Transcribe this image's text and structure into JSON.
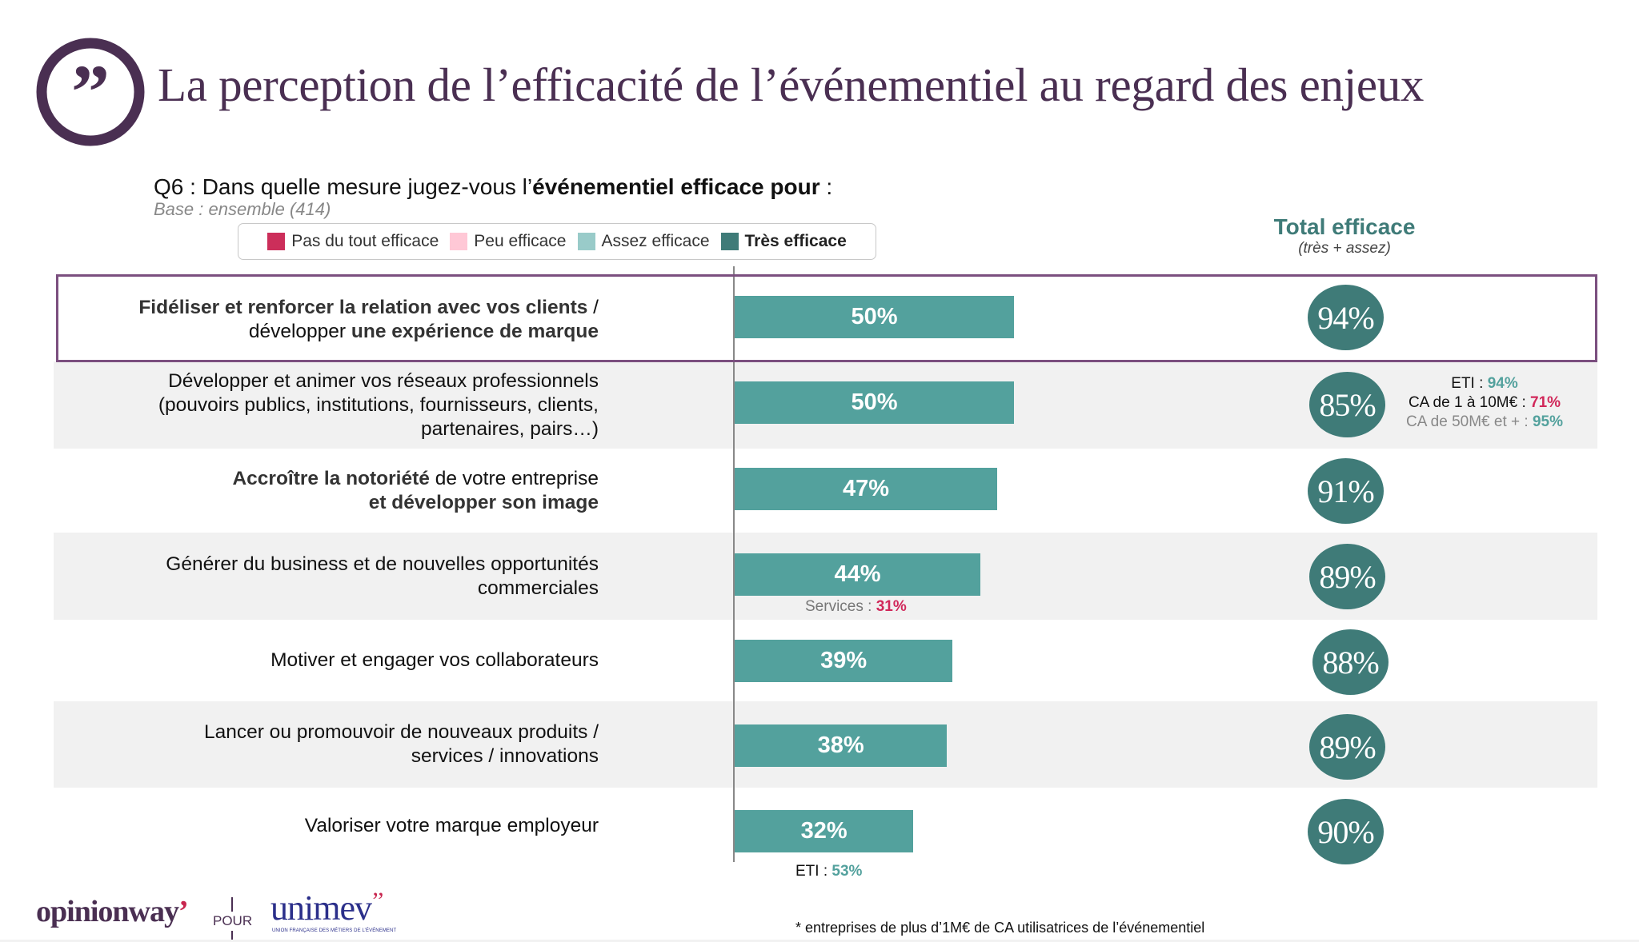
{
  "header": {
    "title": "La perception de l’efficacité de l’événementiel au regard des enjeux",
    "question_prefix": "Q6 :  Dans quelle mesure jugez-vous l’",
    "question_bold": "événementiel efficace pour",
    "question_suffix": " :",
    "base": "Base : ensemble (414)"
  },
  "legend": [
    {
      "label": "Pas du tout efficace",
      "color": "#CC2E5A",
      "bold": false
    },
    {
      "label": "Peu efficace",
      "color": "#FFC8D6",
      "bold": false
    },
    {
      "label": "Assez efficace",
      "color": "#99CBC9",
      "bold": false
    },
    {
      "label": "Très efficace",
      "color": "#3F7B78",
      "bold": true
    }
  ],
  "total_header": {
    "title": "Total efficace",
    "subtitle": "(très + assez)"
  },
  "colors": {
    "bar": "#53A19D",
    "circle": "#3F7B78",
    "highlight_border": "#7B4F7F",
    "title": "#4A2F52",
    "positive_note": "#53A19D",
    "negative_note": "#D1285A"
  },
  "chart_data": {
    "type": "bar",
    "orientation": "horizontal",
    "title": "La perception de l’efficacité de l’événementiel au regard des enjeux",
    "xlabel": "",
    "ylabel": "",
    "xlim": [
      0,
      100
    ],
    "grid": false,
    "legend_position": "top",
    "categories": [
      "Fidéliser et renforcer la relation avec vos clients / développer une expérience de marque",
      "Développer et animer vos réseaux professionnels (pouvoirs publics, institutions, fournisseurs, clients, partenaires, pairs...)",
      "Accroître la notoriété de votre entreprise et développer son image",
      "Générer du business et de nouvelles opportunités commerciales",
      "Motiver et engager vos collaborateurs",
      "Lancer ou promouvoir de nouveaux produits / services / innovations",
      "Valoriser votre marque employeur"
    ],
    "series": [
      {
        "name": "Très efficace",
        "values": [
          50,
          50,
          47,
          44,
          39,
          38,
          32
        ]
      },
      {
        "name": "Total efficace (très + assez)",
        "values": [
          94,
          85,
          91,
          89,
          88,
          89,
          90
        ]
      }
    ],
    "highlighted_category_index": 0
  },
  "rows": [
    {
      "label_lines": [
        [
          {
            "t": "Fidéliser et renforcer la relation avec vos clients",
            "b": true
          },
          {
            "t": " /",
            "b": false
          }
        ],
        [
          {
            "t": "développer ",
            "b": false
          },
          {
            "t": "une expérience de marque",
            "b": true
          }
        ]
      ],
      "bar_label": "50%",
      "total_label": "94%"
    },
    {
      "label_lines": [
        [
          {
            "t": "Développer et animer vos réseaux professionnels",
            "b": false
          }
        ],
        [
          {
            "t": "(pouvoirs publics, institutions, fournisseurs, clients,",
            "b": false
          }
        ],
        [
          {
            "t": "partenaires, pairs…)",
            "b": false
          }
        ]
      ],
      "bar_label": "50%",
      "total_label": "85%"
    },
    {
      "label_lines": [
        [
          {
            "t": "Accroître la notoriété",
            "b": true
          },
          {
            "t": " de votre entreprise",
            "b": false
          }
        ],
        [
          {
            "t": "et développer son image",
            "b": true
          }
        ]
      ],
      "bar_label": "47%",
      "total_label": "91%"
    },
    {
      "label_lines": [
        [
          {
            "t": "Générer du business et de nouvelles opportunités",
            "b": false
          }
        ],
        [
          {
            "t": "commerciales",
            "b": false
          }
        ]
      ],
      "bar_label": "44%",
      "total_label": "89%"
    },
    {
      "label_lines": [
        [
          {
            "t": "Motiver et engager vos collaborateurs",
            "b": false
          }
        ]
      ],
      "bar_label": "39%",
      "total_label": "88%"
    },
    {
      "label_lines": [
        [
          {
            "t": "Lancer ou promouvoir de nouveaux produits /",
            "b": false
          }
        ],
        [
          {
            "t": "services / innovations",
            "b": false
          }
        ]
      ],
      "bar_label": "38%",
      "total_label": "89%"
    },
    {
      "label_lines": [
        [
          {
            "t": "Valoriser votre marque employeur",
            "b": false
          }
        ]
      ],
      "bar_label": "32%",
      "total_label": "90%"
    }
  ],
  "notes": {
    "row2_subgroups": [
      {
        "label": "ETI : ",
        "value": "94%",
        "tone": "positive"
      },
      {
        "label": "CA de 1 à 10M€ : ",
        "value": "71%",
        "tone": "negative"
      },
      {
        "label": "CA de 50M€ et + : ",
        "value": "95%",
        "tone": "positive"
      }
    ],
    "services": {
      "label": "Services : ",
      "value": "31%"
    },
    "eti": {
      "label": "ETI : ",
      "value": "53%"
    }
  },
  "footer": {
    "brand_left": "opinionway",
    "brand_left_mark": "’",
    "connector": "POUR",
    "brand_right": "unimev",
    "brand_right_mark": "’’",
    "brand_right_sub": "UNION FRANÇAISE DES MÉTIERS DE L’ÉVÉNEMENT",
    "footnote": "* entreprises de plus d’1M€ de CA utilisatrices de l’événementiel"
  }
}
